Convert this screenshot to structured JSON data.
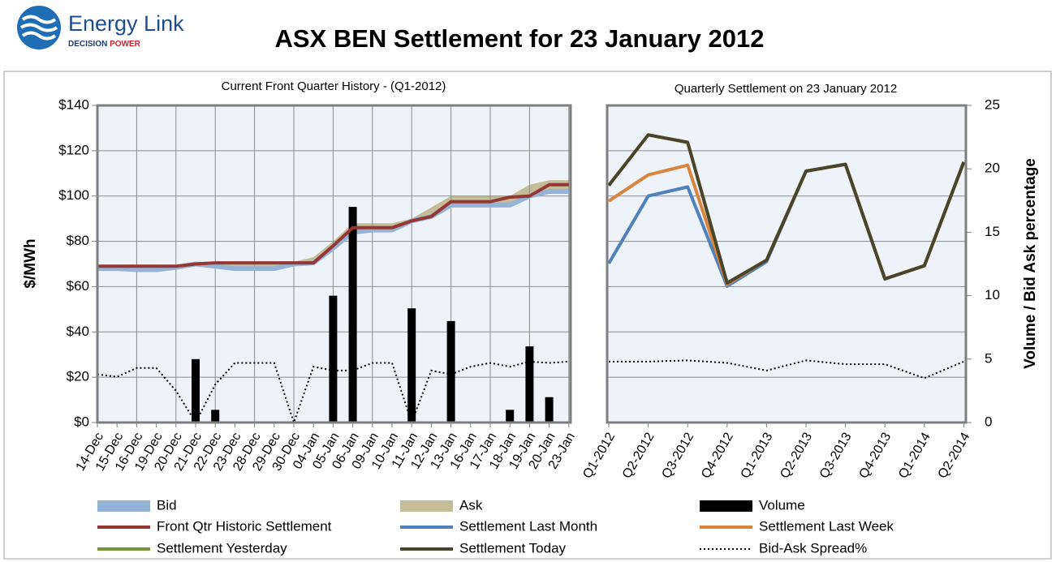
{
  "header": {
    "logo_name": "Energy Link",
    "logo_tag_1": "DECISION",
    "logo_tag_2": "POWER"
  },
  "chart_data": {
    "type": "combo",
    "title": "ASX BEN Settlement for 23 January 2012",
    "y_label": "$/MWh",
    "y2_label": "Volume / Bid Ask percentage",
    "ylim": [
      0,
      140
    ],
    "yticks": [
      {
        "value": 0,
        "label": "$0"
      },
      {
        "value": 20,
        "label": "$20"
      },
      {
        "value": 40,
        "label": "$40"
      },
      {
        "value": 60,
        "label": "$60"
      },
      {
        "value": 80,
        "label": "$80"
      },
      {
        "value": 100,
        "label": "$100"
      },
      {
        "value": 120,
        "label": "$120"
      },
      {
        "value": 140,
        "label": "$140"
      }
    ],
    "y2lim": [
      0,
      25
    ],
    "y2ticks": [
      0,
      5,
      10,
      15,
      20,
      25
    ],
    "grid": true,
    "legend": "bottom",
    "panels": [
      {
        "subtitle": "Current Front Quarter History - (Q1-2012)",
        "categories": [
          "14-Dec",
          "15-Dec",
          "16-Dec",
          "19-Dec",
          "20-Dec",
          "21-Dec",
          "22-Dec",
          "23-Dec",
          "28-Dec",
          "29-Dec",
          "30-Dec",
          "04-Jan",
          "05-Jan",
          "06-Jan",
          "09-Jan",
          "10-Jan",
          "11-Jan",
          "12-Jan",
          "13-Jan",
          "16-Jan",
          "17-Jan",
          "18-Jan",
          "19-Jan",
          "20-Jan",
          "23-Jan"
        ],
        "series": [
          {
            "name": "Bid",
            "style": "band",
            "color": "#95b3d7",
            "values": [
              68,
              68,
              67.5,
              67.5,
              68.5,
              70,
              69,
              68,
              68,
              68,
              70,
              70.5,
              77,
              84,
              85,
              85,
              89,
              91,
              96,
              96,
              96,
              96,
              100,
              102,
              102
            ]
          },
          {
            "name": "Ask",
            "style": "area",
            "color": "#c4bd97",
            "values": [
              69,
              69,
              69,
              69,
              69.5,
              70.5,
              71,
              71,
              71,
              71,
              71,
              73,
              80,
              88,
              88,
              88,
              90,
              95,
              100,
              100,
              100,
              100,
              105,
              107,
              107
            ]
          },
          {
            "name": "Volume",
            "style": "bar",
            "axis": "y2",
            "color": "#000000",
            "values": [
              0,
              0,
              0,
              0,
              0,
              5,
              1,
              0,
              0,
              0,
              0,
              0,
              10,
              17,
              0,
              0,
              9,
              0,
              8,
              0,
              0,
              1,
              6,
              2,
              0
            ]
          },
          {
            "name": "Front Qtr Historic Settlement",
            "style": "line",
            "color": "#953735",
            "values": [
              69,
              69,
              69,
              69,
              69,
              70,
              70.5,
              70.5,
              70.5,
              70.5,
              70.5,
              70.5,
              78,
              86,
              86,
              86,
              89,
              91,
              97.5,
              97.5,
              97.5,
              99.5,
              100,
              105,
              105
            ]
          },
          {
            "name": "Bid-Ask Spread%",
            "style": "dotted",
            "axis": "y2",
            "color": "#000000",
            "values": [
              3.8,
              3.6,
              4.3,
              4.3,
              2.5,
              0,
              3,
              4.7,
              4.7,
              4.7,
              0,
              4.4,
              4.1,
              4.1,
              4.7,
              4.7,
              0,
              4.1,
              3.8,
              4.4,
              4.7,
              4.4,
              4.8,
              4.7,
              4.8
            ]
          }
        ]
      },
      {
        "subtitle": "Quarterly Settlement on 23 January 2012",
        "categories": [
          "Q1-2012",
          "Q2-2012",
          "Q3-2012",
          "Q4-2012",
          "Q1-2013",
          "Q2-2013",
          "Q3-2013",
          "Q4-2013",
          "Q1-2014",
          "Q2-2014"
        ],
        "series": [
          {
            "name": "Settlement Last Month",
            "style": "line",
            "color": "#4f81bd",
            "values": [
              70.2,
              100,
              104,
              60.2,
              71,
              111,
              114,
              63.4,
              69.2,
              115
            ]
          },
          {
            "name": "Settlement Last Week",
            "style": "line",
            "color": "#d9843f",
            "values": [
              97.8,
              109.3,
              113.6,
              61,
              71.7,
              111,
              114,
              63.4,
              69.2,
              115
            ]
          },
          {
            "name": "Settlement Yesterday",
            "style": "line",
            "color": "#77933c",
            "values": [
              104.7,
              127,
              123.7,
              61.6,
              71.7,
              111,
              114,
              63.4,
              69.2,
              115
            ]
          },
          {
            "name": "Settlement Today",
            "style": "line",
            "color": "#4a452a",
            "values": [
              104.7,
              127,
              123.7,
              61.6,
              71.7,
              111,
              114,
              63.4,
              69.2,
              115
            ]
          },
          {
            "name": "Bid-Ask Spread%",
            "style": "dotted",
            "axis": "y2",
            "color": "#000000",
            "values": [
              4.8,
              4.8,
              4.9,
              4.7,
              4.1,
              4.9,
              4.6,
              4.6,
              3.5,
              4.8
            ]
          }
        ]
      }
    ]
  }
}
